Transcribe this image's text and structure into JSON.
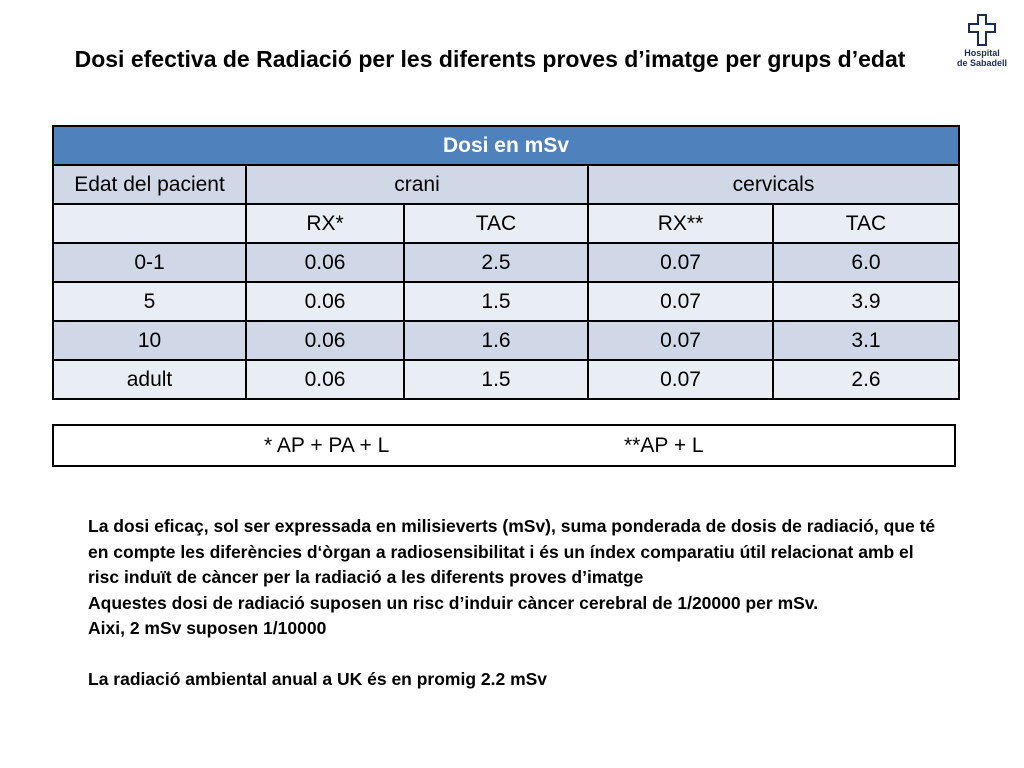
{
  "title": "Dosi efectiva de Radiació per les diferents proves d’imatge per grups d’edat",
  "logo": {
    "line1": "Hospital",
    "line2": "de Sabadell",
    "color": "#1a2b5c"
  },
  "table": {
    "header": "Dosi en mSv",
    "row_label": "Edat del pacient",
    "groups": [
      "crani",
      "cervicals"
    ],
    "subheaders": [
      "RX*",
      "TAC",
      "RX**",
      "TAC"
    ],
    "rows": [
      [
        "0-1",
        "0.06",
        "2.5",
        "0.07",
        "6.0"
      ],
      [
        "5",
        "0.06",
        "1.5",
        "0.07",
        "3.9"
      ],
      [
        "10",
        "0.06",
        "1.6",
        "0.07",
        "3.1"
      ],
      [
        "adult",
        "0.06",
        "1.5",
        "0.07",
        "2.6"
      ]
    ]
  },
  "footnote": {
    "a": "* AP + PA + L",
    "b": "**AP + L"
  },
  "body": {
    "para1": "La dosi eficaç, sol ser expressada en milisieverts (mSv),  suma ponderada de dosis de radiació, que té en compte les diferències d‘òrgan a radiosensibilitat i és un índex comparatiu útil relacionat amb  el risc induït de càncer per la radiació a les diferents proves d’imatge",
    "para2": "Aquestes dosi de radiació suposen un risc d’induir càncer cerebral de 1/20000 per  mSv.",
    "para3": "Aixi, 2 mSv suposen 1/10000",
    "para4": "La radiació ambiental anual a UK és en promig 2.2 mSv"
  },
  "colors": {
    "header_bg": "#4f81bd",
    "row_dark": "#d0d8e8",
    "row_light": "#e9edf4"
  }
}
